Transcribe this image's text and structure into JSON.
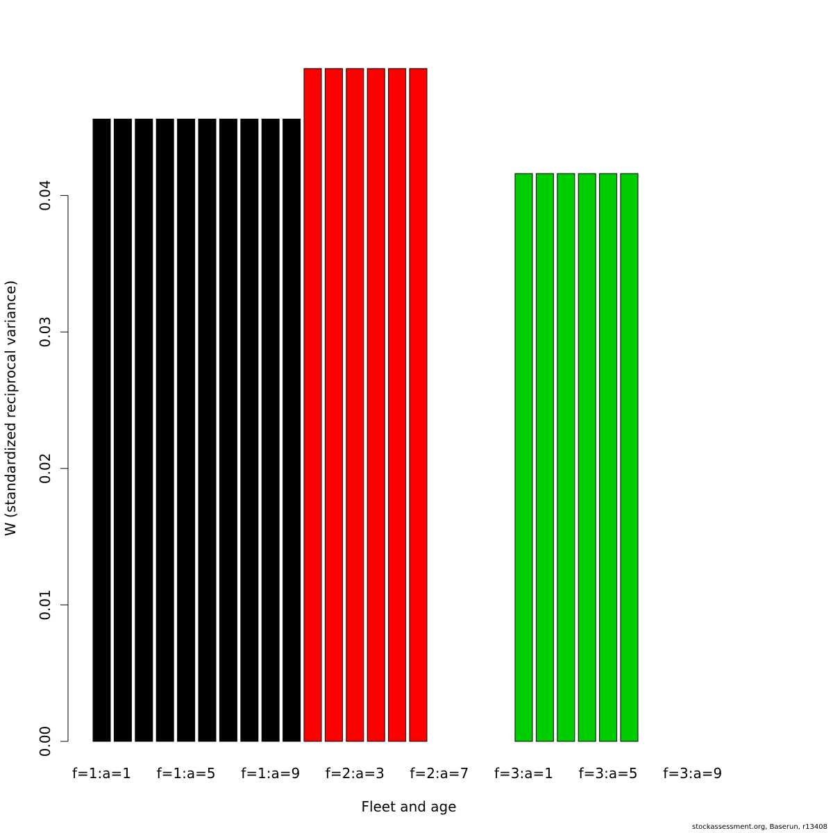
{
  "chart_data": {
    "type": "bar",
    "title": "",
    "xlabel": "Fleet and age",
    "ylabel": "W (standardized reciprocal variance)",
    "ylim": [
      0,
      0.05
    ],
    "yticks": [
      "0.00",
      "0.01",
      "0.02",
      "0.03",
      "0.04"
    ],
    "ytick_values": [
      0,
      0.01,
      0.02,
      0.03,
      0.04
    ],
    "grid": false,
    "categories": [
      "f=1:a=1",
      "f=1:a=2",
      "f=1:a=3",
      "f=1:a=4",
      "f=1:a=5",
      "f=1:a=6",
      "f=1:a=7",
      "f=1:a=8",
      "f=1:a=9",
      "f=1:a=10",
      "f=2:a=1",
      "f=2:a=2",
      "f=2:a=3",
      "f=2:a=4",
      "f=2:a=5",
      "f=2:a=6",
      "f=2:a=7",
      "f=2:a=8",
      "f=2:a=9",
      "f=2:a=10",
      "f=3:a=1",
      "f=3:a=2",
      "f=3:a=3",
      "f=3:a=4",
      "f=3:a=5",
      "f=3:a=6",
      "f=3:a=7",
      "f=3:a=8",
      "f=3:a=9",
      "f=3:a=10"
    ],
    "xtick_labels_shown": [
      "f=1:a=1",
      "f=1:a=5",
      "f=1:a=9",
      "f=2:a=3",
      "f=2:a=7",
      "f=3:a=1",
      "f=3:a=5",
      "f=3:a=9"
    ],
    "series": [
      {
        "color": "#000000",
        "values": [
          0.0456,
          0.0456,
          0.0456,
          0.0456,
          0.0456,
          0.0456,
          0.0456,
          0.0456,
          0.0456,
          0.0456,
          null,
          null,
          null,
          null,
          null,
          null,
          null,
          null,
          null,
          null,
          null,
          null,
          null,
          null,
          null,
          null,
          null,
          null,
          null,
          null
        ]
      },
      {
        "color": "#ff0000",
        "values": [
          null,
          null,
          null,
          null,
          null,
          null,
          null,
          null,
          null,
          null,
          0.0493,
          0.0493,
          0.0493,
          0.0493,
          0.0493,
          0.0493,
          null,
          null,
          null,
          null,
          null,
          null,
          null,
          null,
          null,
          null,
          null,
          null,
          null,
          null
        ]
      },
      {
        "color": "#00cd00",
        "values": [
          null,
          null,
          null,
          null,
          null,
          null,
          null,
          null,
          null,
          null,
          null,
          null,
          null,
          null,
          null,
          null,
          null,
          null,
          null,
          null,
          0.0416,
          0.0416,
          0.0416,
          0.0416,
          0.0416,
          0.0416,
          null,
          null,
          null,
          null
        ]
      }
    ]
  },
  "footer": {
    "credit": "stockassessment.org, Baserun, r13408"
  }
}
